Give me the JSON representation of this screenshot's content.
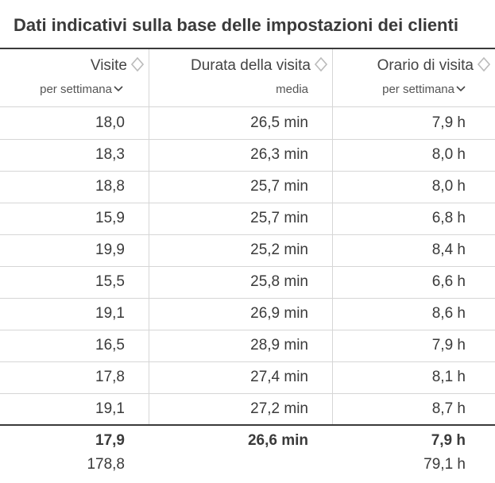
{
  "title": "Dati indicativi sulla base delle impostazioni dei clienti",
  "columns": [
    {
      "label": "Visite",
      "sublabel": "per settimana",
      "sublabel_dropdown": true
    },
    {
      "label": "Durata della visita",
      "sublabel": "media",
      "sublabel_dropdown": false
    },
    {
      "label": "Orario di visita",
      "sublabel": "per settimana",
      "sublabel_dropdown": true
    }
  ],
  "rows": [
    [
      "18,0",
      "26,5 min",
      "7,9 h"
    ],
    [
      "18,3",
      "26,3 min",
      "8,0 h"
    ],
    [
      "18,8",
      "25,7 min",
      "8,0 h"
    ],
    [
      "15,9",
      "25,7 min",
      "6,8 h"
    ],
    [
      "19,9",
      "25,2 min",
      "8,4 h"
    ],
    [
      "15,5",
      "25,8 min",
      "6,6 h"
    ],
    [
      "19,1",
      "26,9 min",
      "8,6 h"
    ],
    [
      "16,5",
      "28,9 min",
      "7,9 h"
    ],
    [
      "17,8",
      "27,4 min",
      "8,1 h"
    ],
    [
      "19,1",
      "27,2 min",
      "8,7 h"
    ]
  ],
  "summary": {
    "averages": [
      "17,9",
      "26,6 min",
      "7,9 h"
    ],
    "totals": [
      "178,8",
      "",
      "79,1 h"
    ]
  },
  "icons": {
    "sort": "sort-diamond-icon",
    "dropdown": "chevron-down-icon"
  },
  "colors": {
    "text": "#3a3a3a",
    "grid": "#d6d6d6",
    "icon": "#bbbbbb"
  }
}
